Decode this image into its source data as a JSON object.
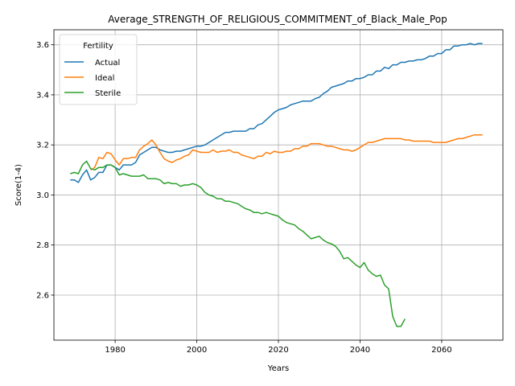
{
  "chart_data": {
    "type": "line",
    "title": "Average_STRENGTH_OF_RELIGIOUS_COMMITMENT_of_Black_Male_Pop",
    "xlabel": "Years",
    "ylabel": "Score(1-4)",
    "xlim": [
      1965,
      2075
    ],
    "ylim": [
      2.42,
      3.66
    ],
    "x_ticks": [
      1980,
      2000,
      2020,
      2040,
      2060
    ],
    "x_tick_labels": [
      "1980",
      "2000",
      "2020",
      "2040",
      "2060"
    ],
    "y_ticks": [
      2.6,
      2.8,
      3.0,
      3.2,
      3.4,
      3.6
    ],
    "y_tick_labels": [
      "2.6",
      "2.8",
      "3.0",
      "3.2",
      "3.4",
      "3.6"
    ],
    "grid": true,
    "legend": {
      "title": "Fertility",
      "placement": "top-left"
    },
    "series": [
      {
        "name": "Actual",
        "color": "#1f77b4",
        "points": [
          [
            1969,
            3.06
          ],
          [
            1970,
            3.06
          ],
          [
            1971,
            3.05
          ],
          [
            1972,
            3.08
          ],
          [
            1973,
            3.1
          ],
          [
            1974,
            3.06
          ],
          [
            1975,
            3.07
          ],
          [
            1976,
            3.09
          ],
          [
            1977,
            3.09
          ],
          [
            1978,
            3.12
          ],
          [
            1979,
            3.12
          ],
          [
            1980,
            3.11
          ],
          [
            1981,
            3.1
          ],
          [
            1982,
            3.12
          ],
          [
            1983,
            3.12
          ],
          [
            1984,
            3.12
          ],
          [
            1985,
            3.13
          ],
          [
            1986,
            3.16
          ],
          [
            1987,
            3.17
          ],
          [
            1988,
            3.18
          ],
          [
            1989,
            3.19
          ],
          [
            1990,
            3.19
          ],
          [
            1991,
            3.18
          ],
          [
            1992,
            3.175
          ],
          [
            1993,
            3.17
          ],
          [
            1994,
            3.17
          ],
          [
            1995,
            3.175
          ],
          [
            1996,
            3.175
          ],
          [
            1997,
            3.18
          ],
          [
            1998,
            3.185
          ],
          [
            1999,
            3.19
          ],
          [
            2000,
            3.195
          ],
          [
            2001,
            3.195
          ],
          [
            2002,
            3.2
          ],
          [
            2003,
            3.21
          ],
          [
            2004,
            3.22
          ],
          [
            2005,
            3.23
          ],
          [
            2006,
            3.24
          ],
          [
            2007,
            3.25
          ],
          [
            2008,
            3.25
          ],
          [
            2009,
            3.255
          ],
          [
            2010,
            3.255
          ],
          [
            2011,
            3.255
          ],
          [
            2012,
            3.255
          ],
          [
            2013,
            3.265
          ],
          [
            2014,
            3.265
          ],
          [
            2015,
            3.28
          ],
          [
            2016,
            3.285
          ],
          [
            2017,
            3.3
          ],
          [
            2018,
            3.315
          ],
          [
            2019,
            3.33
          ],
          [
            2020,
            3.34
          ],
          [
            2021,
            3.345
          ],
          [
            2022,
            3.35
          ],
          [
            2023,
            3.36
          ],
          [
            2024,
            3.365
          ],
          [
            2025,
            3.37
          ],
          [
            2026,
            3.375
          ],
          [
            2027,
            3.375
          ],
          [
            2028,
            3.375
          ],
          [
            2029,
            3.385
          ],
          [
            2030,
            3.39
          ],
          [
            2031,
            3.405
          ],
          [
            2032,
            3.415
          ],
          [
            2033,
            3.43
          ],
          [
            2034,
            3.435
          ],
          [
            2035,
            3.44
          ],
          [
            2036,
            3.445
          ],
          [
            2037,
            3.455
          ],
          [
            2038,
            3.455
          ],
          [
            2039,
            3.465
          ],
          [
            2040,
            3.465
          ],
          [
            2041,
            3.47
          ],
          [
            2042,
            3.48
          ],
          [
            2043,
            3.48
          ],
          [
            2044,
            3.495
          ],
          [
            2045,
            3.495
          ],
          [
            2046,
            3.51
          ],
          [
            2047,
            3.505
          ],
          [
            2048,
            3.52
          ],
          [
            2049,
            3.52
          ],
          [
            2050,
            3.53
          ],
          [
            2051,
            3.53
          ],
          [
            2052,
            3.535
          ],
          [
            2053,
            3.535
          ],
          [
            2054,
            3.54
          ],
          [
            2055,
            3.54
          ],
          [
            2056,
            3.545
          ],
          [
            2057,
            3.555
          ],
          [
            2058,
            3.555
          ],
          [
            2059,
            3.565
          ],
          [
            2060,
            3.565
          ],
          [
            2061,
            3.58
          ],
          [
            2062,
            3.58
          ],
          [
            2063,
            3.595
          ],
          [
            2064,
            3.595
          ],
          [
            2065,
            3.6
          ],
          [
            2066,
            3.6
          ],
          [
            2067,
            3.605
          ],
          [
            2068,
            3.6
          ],
          [
            2069,
            3.605
          ],
          [
            2070,
            3.605
          ]
        ]
      },
      {
        "name": "Ideal",
        "color": "#ff7f0e",
        "points": [
          [
            1974,
            3.1
          ],
          [
            1975,
            3.11
          ],
          [
            1976,
            3.15
          ],
          [
            1977,
            3.145
          ],
          [
            1978,
            3.17
          ],
          [
            1979,
            3.165
          ],
          [
            1980,
            3.14
          ],
          [
            1981,
            3.12
          ],
          [
            1982,
            3.145
          ],
          [
            1983,
            3.145
          ],
          [
            1984,
            3.15
          ],
          [
            1985,
            3.15
          ],
          [
            1986,
            3.18
          ],
          [
            1987,
            3.195
          ],
          [
            1988,
            3.205
          ],
          [
            1989,
            3.22
          ],
          [
            1990,
            3.2
          ],
          [
            1991,
            3.17
          ],
          [
            1992,
            3.145
          ],
          [
            1993,
            3.135
          ],
          [
            1994,
            3.13
          ],
          [
            1995,
            3.14
          ],
          [
            1996,
            3.145
          ],
          [
            1997,
            3.155
          ],
          [
            1998,
            3.16
          ],
          [
            1999,
            3.18
          ],
          [
            2000,
            3.175
          ],
          [
            2001,
            3.17
          ],
          [
            2002,
            3.17
          ],
          [
            2003,
            3.17
          ],
          [
            2004,
            3.18
          ],
          [
            2005,
            3.17
          ],
          [
            2006,
            3.175
          ],
          [
            2007,
            3.175
          ],
          [
            2008,
            3.18
          ],
          [
            2009,
            3.17
          ],
          [
            2010,
            3.17
          ],
          [
            2011,
            3.16
          ],
          [
            2012,
            3.155
          ],
          [
            2013,
            3.15
          ],
          [
            2014,
            3.145
          ],
          [
            2015,
            3.155
          ],
          [
            2016,
            3.155
          ],
          [
            2017,
            3.17
          ],
          [
            2018,
            3.165
          ],
          [
            2019,
            3.175
          ],
          [
            2020,
            3.17
          ],
          [
            2021,
            3.17
          ],
          [
            2022,
            3.175
          ],
          [
            2023,
            3.175
          ],
          [
            2024,
            3.185
          ],
          [
            2025,
            3.185
          ],
          [
            2026,
            3.195
          ],
          [
            2027,
            3.195
          ],
          [
            2028,
            3.205
          ],
          [
            2029,
            3.205
          ],
          [
            2030,
            3.205
          ],
          [
            2031,
            3.2
          ],
          [
            2032,
            3.195
          ],
          [
            2033,
            3.195
          ],
          [
            2034,
            3.19
          ],
          [
            2035,
            3.185
          ],
          [
            2036,
            3.18
          ],
          [
            2037,
            3.18
          ],
          [
            2038,
            3.175
          ],
          [
            2039,
            3.18
          ],
          [
            2040,
            3.19
          ],
          [
            2041,
            3.2
          ],
          [
            2042,
            3.21
          ],
          [
            2043,
            3.21
          ],
          [
            2044,
            3.215
          ],
          [
            2045,
            3.22
          ],
          [
            2046,
            3.225
          ],
          [
            2047,
            3.225
          ],
          [
            2048,
            3.225
          ],
          [
            2049,
            3.225
          ],
          [
            2050,
            3.225
          ],
          [
            2051,
            3.22
          ],
          [
            2052,
            3.22
          ],
          [
            2053,
            3.215
          ],
          [
            2054,
            3.215
          ],
          [
            2055,
            3.215
          ],
          [
            2056,
            3.215
          ],
          [
            2057,
            3.215
          ],
          [
            2058,
            3.21
          ],
          [
            2059,
            3.21
          ],
          [
            2060,
            3.21
          ],
          [
            2061,
            3.21
          ],
          [
            2062,
            3.215
          ],
          [
            2063,
            3.22
          ],
          [
            2064,
            3.225
          ],
          [
            2065,
            3.225
          ],
          [
            2066,
            3.23
          ],
          [
            2067,
            3.235
          ],
          [
            2068,
            3.24
          ],
          [
            2069,
            3.24
          ],
          [
            2070,
            3.24
          ]
        ]
      },
      {
        "name": "Sterile",
        "color": "#2ca02c",
        "points": [
          [
            1969,
            3.085
          ],
          [
            1970,
            3.09
          ],
          [
            1971,
            3.085
          ],
          [
            1972,
            3.12
          ],
          [
            1973,
            3.135
          ],
          [
            1974,
            3.105
          ],
          [
            1975,
            3.1
          ],
          [
            1976,
            3.11
          ],
          [
            1977,
            3.11
          ],
          [
            1978,
            3.12
          ],
          [
            1979,
            3.12
          ],
          [
            1980,
            3.11
          ],
          [
            1981,
            3.08
          ],
          [
            1982,
            3.085
          ],
          [
            1983,
            3.08
          ],
          [
            1984,
            3.075
          ],
          [
            1985,
            3.075
          ],
          [
            1986,
            3.075
          ],
          [
            1987,
            3.08
          ],
          [
            1988,
            3.065
          ],
          [
            1989,
            3.065
          ],
          [
            1990,
            3.065
          ],
          [
            1991,
            3.06
          ],
          [
            1992,
            3.045
          ],
          [
            1993,
            3.05
          ],
          [
            1994,
            3.045
          ],
          [
            1995,
            3.045
          ],
          [
            1996,
            3.035
          ],
          [
            1997,
            3.04
          ],
          [
            1998,
            3.04
          ],
          [
            1999,
            3.045
          ],
          [
            2000,
            3.04
          ],
          [
            2001,
            3.03
          ],
          [
            2002,
            3.01
          ],
          [
            2003,
            3.0
          ],
          [
            2004,
            2.995
          ],
          [
            2005,
            2.985
          ],
          [
            2006,
            2.985
          ],
          [
            2007,
            2.975
          ],
          [
            2008,
            2.975
          ],
          [
            2009,
            2.97
          ],
          [
            2010,
            2.965
          ],
          [
            2011,
            2.955
          ],
          [
            2012,
            2.945
          ],
          [
            2013,
            2.94
          ],
          [
            2014,
            2.93
          ],
          [
            2015,
            2.93
          ],
          [
            2016,
            2.925
          ],
          [
            2017,
            2.93
          ],
          [
            2018,
            2.925
          ],
          [
            2019,
            2.92
          ],
          [
            2020,
            2.915
          ],
          [
            2021,
            2.9
          ],
          [
            2022,
            2.89
          ],
          [
            2023,
            2.885
          ],
          [
            2024,
            2.88
          ],
          [
            2025,
            2.865
          ],
          [
            2026,
            2.855
          ],
          [
            2027,
            2.84
          ],
          [
            2028,
            2.825
          ],
          [
            2029,
            2.83
          ],
          [
            2030,
            2.835
          ],
          [
            2031,
            2.82
          ],
          [
            2032,
            2.81
          ],
          [
            2033,
            2.805
          ],
          [
            2034,
            2.795
          ],
          [
            2035,
            2.775
          ],
          [
            2036,
            2.745
          ],
          [
            2037,
            2.75
          ],
          [
            2038,
            2.735
          ],
          [
            2039,
            2.72
          ],
          [
            2040,
            2.71
          ],
          [
            2041,
            2.73
          ],
          [
            2042,
            2.7
          ],
          [
            2043,
            2.685
          ],
          [
            2044,
            2.675
          ],
          [
            2045,
            2.68
          ],
          [
            2046,
            2.64
          ],
          [
            2047,
            2.625
          ],
          [
            2048,
            2.515
          ],
          [
            2049,
            2.475
          ],
          [
            2050,
            2.475
          ],
          [
            2051,
            2.505
          ]
        ]
      }
    ]
  }
}
